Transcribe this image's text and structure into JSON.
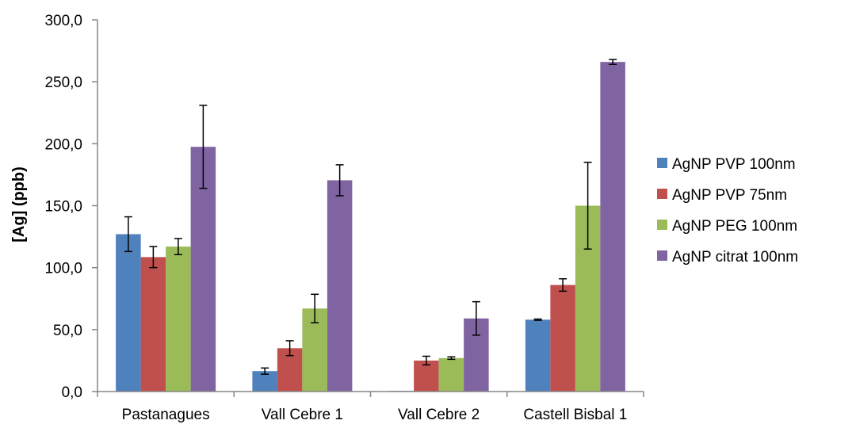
{
  "chart_data": {
    "type": "bar",
    "title": "",
    "xlabel": "",
    "ylabel": "[Ag] (ppb)",
    "ylim": [
      0,
      300
    ],
    "yticks": [
      "0,0",
      "50,0",
      "100,0",
      "150,0",
      "200,0",
      "250,0",
      "300,0"
    ],
    "categories": [
      "Pastanagues",
      "Vall Cebre 1",
      "Vall Cebre 2",
      "Castell Bisbal 1"
    ],
    "series": [
      {
        "name": "AgNP PVP 100nm",
        "color": "#4f81bd",
        "values": [
          127,
          16.5,
          0.5,
          58
        ],
        "errors": [
          14,
          2.5,
          0,
          0.5
        ]
      },
      {
        "name": "AgNP PVP 75nm",
        "color": "#c0504d",
        "values": [
          108.5,
          35,
          25,
          86
        ],
        "errors": [
          8.5,
          6,
          3.5,
          5
        ]
      },
      {
        "name": "AgNP PEG 100nm",
        "color": "#9bbb59",
        "values": [
          117,
          67,
          27,
          150
        ],
        "errors": [
          6.5,
          11.5,
          1,
          35
        ]
      },
      {
        "name": "AgNP citrat 100nm",
        "color": "#8064a2",
        "values": [
          197.5,
          170.5,
          59,
          266
        ],
        "errors": [
          33.5,
          12.5,
          13.5,
          2
        ]
      }
    ],
    "grid": false,
    "legend": "right"
  }
}
